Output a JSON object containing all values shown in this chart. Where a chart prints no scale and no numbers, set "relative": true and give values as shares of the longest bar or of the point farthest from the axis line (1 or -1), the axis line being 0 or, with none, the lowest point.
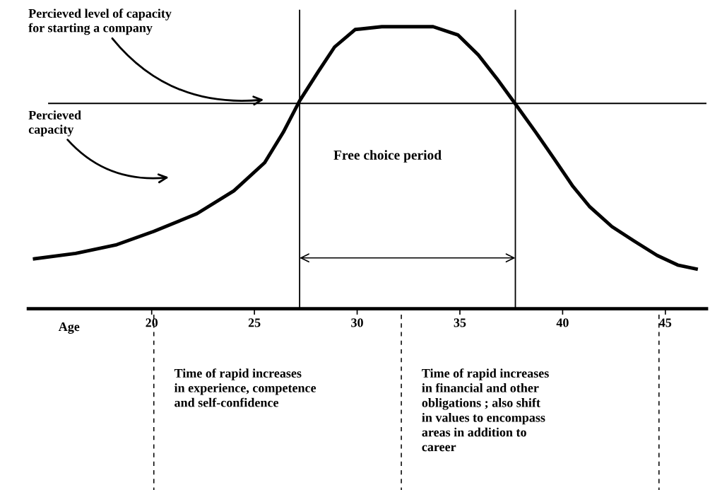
{
  "chart_data": {
    "type": "line",
    "relative": true,
    "xlabel": "Age",
    "xlim": [
      14,
      47
    ],
    "xticks": [
      20,
      25,
      30,
      35,
      40,
      45
    ],
    "tick_labels": "x",
    "grid": false,
    "marker": "none",
    "line_style": "solid",
    "series": [
      {
        "color": "#000000",
        "x": [
          14.3,
          16.3,
          18.3,
          20.1,
          22.2,
          24.0,
          25.5,
          26.4,
          27.2,
          28.1,
          28.9,
          29.9,
          31.2,
          33.7,
          34.9,
          35.9,
          36.8,
          37.75,
          38.7,
          39.6,
          40.5,
          41.3,
          42.4,
          43.5,
          44.6,
          45.6,
          46.5
        ],
        "values": [
          0.177,
          0.196,
          0.227,
          0.274,
          0.337,
          0.418,
          0.518,
          0.625,
          0.737,
          0.84,
          0.928,
          0.99,
          1,
          1,
          0.971,
          0.9,
          0.816,
          0.721,
          0.625,
          0.53,
          0.434,
          0.363,
          0.291,
          0.239,
          0.189,
          0.155,
          0.141
        ]
      }
    ],
    "ref_lines": [
      {
        "axis": "y",
        "value": 0.728,
        "color": "#000000",
        "line_style": "solid"
      },
      {
        "axis": "x",
        "value": 27.2,
        "color": "#000000",
        "line_style": "solid"
      },
      {
        "axis": "x",
        "value": 37.7,
        "color": "#000000",
        "line_style": "solid"
      }
    ],
    "annotations": [
      "Percieved level of capacity\nfor starting a company",
      "Percieved\ncapacity",
      "Free choice period",
      "Time of rapid increases\nin experience, competence\nand self-confidence",
      "Time of rapid increases\nin financial and other\nobligations ; also shift\nin values to encompass\nareas in addition to\ncareer"
    ]
  }
}
